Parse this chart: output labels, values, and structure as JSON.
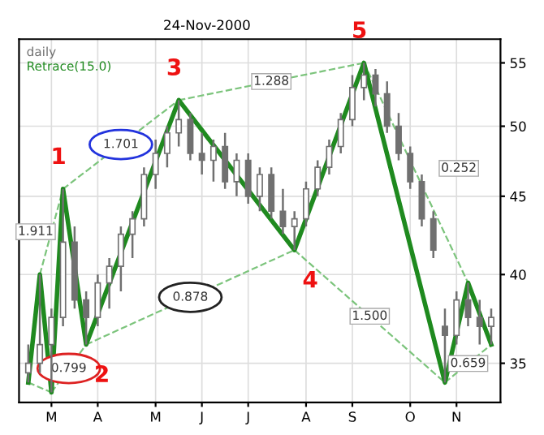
{
  "chart_data": {
    "type": "candlestick",
    "subtitle": "24-Nov-2000",
    "log": "y",
    "grid": true,
    "legend": "top left",
    "categories": [
      null,
      null,
      "M",
      null,
      null,
      null,
      "A",
      null,
      null,
      null,
      null,
      "M",
      null,
      null,
      null,
      "J",
      null,
      null,
      null,
      "J",
      null,
      null,
      null,
      null,
      "A",
      null,
      null,
      null,
      "S",
      null,
      null,
      null,
      null,
      "O",
      null,
      null,
      null,
      "N",
      null,
      null,
      null
    ],
    "ylim": [
      33,
      57
    ],
    "yticks": [
      35,
      40,
      45,
      50,
      55
    ],
    "series": [
      {
        "name": "daily",
        "color": "#707070",
        "ohlc": [
          [
            34.5,
            36,
            34,
            35
          ],
          [
            35,
            40,
            34.5,
            36
          ],
          [
            36,
            38,
            33.5,
            37.5
          ],
          [
            37.5,
            45.5,
            37,
            42
          ],
          [
            42,
            43,
            38,
            38.5
          ],
          [
            38.5,
            39,
            36,
            37.5
          ],
          [
            37.5,
            40,
            37,
            39.5
          ],
          [
            39.5,
            41,
            38,
            40.5
          ],
          [
            40.5,
            43,
            39,
            42.5
          ],
          [
            42.5,
            44,
            41,
            43.5
          ],
          [
            43.5,
            47,
            43,
            46.5
          ],
          [
            46.5,
            49,
            45.5,
            48
          ],
          [
            48,
            50,
            47,
            49.5
          ],
          [
            49.5,
            52,
            48.5,
            50.5
          ],
          [
            50.5,
            51,
            47.5,
            48
          ],
          [
            48,
            49.5,
            46.5,
            47.5
          ],
          [
            47.5,
            49,
            46,
            48.5
          ],
          [
            48.5,
            49.5,
            45.5,
            46
          ],
          [
            46,
            48,
            45,
            47.5
          ],
          [
            47.5,
            48,
            44.5,
            45
          ],
          [
            45,
            47,
            44,
            46.5
          ],
          [
            46.5,
            47,
            43.5,
            44
          ],
          [
            44,
            45.5,
            42.5,
            43
          ],
          [
            43,
            44,
            41.5,
            43.5
          ],
          [
            43.5,
            46,
            43,
            45.5
          ],
          [
            45.5,
            47.5,
            45,
            47
          ],
          [
            47,
            49,
            46.5,
            48.5
          ],
          [
            48.5,
            51,
            48,
            50.5
          ],
          [
            50.5,
            54,
            50,
            53
          ],
          [
            53,
            55,
            52,
            54
          ],
          [
            54,
            54.5,
            51.5,
            52.5
          ],
          [
            52.5,
            53.5,
            49.5,
            50
          ],
          [
            50,
            51,
            47.5,
            48
          ],
          [
            48,
            48.5,
            45.5,
            46
          ],
          [
            46,
            46.5,
            43,
            43.5
          ],
          [
            43.5,
            44,
            41,
            41.5
          ],
          [
            37,
            38,
            34,
            36.5
          ],
          [
            36.5,
            39,
            36,
            38.5
          ],
          [
            38.5,
            39.5,
            37,
            37.5
          ],
          [
            37.5,
            38.5,
            36,
            37
          ],
          [
            37,
            38,
            36,
            37.5
          ]
        ]
      },
      {
        "type": "line",
        "name": "Retrace(15.0)",
        "color": "#1f8a1f",
        "line_style": "solid",
        "values": [
          34,
          40,
          33.5,
          45.5,
          null,
          36,
          null,
          null,
          null,
          null,
          null,
          null,
          null,
          52,
          null,
          null,
          null,
          null,
          null,
          null,
          null,
          null,
          null,
          41.5,
          null,
          null,
          null,
          null,
          null,
          55,
          null,
          null,
          null,
          null,
          null,
          null,
          34,
          null,
          39.5,
          null,
          36
        ]
      },
      {
        "type": "line",
        "color": "#7cc47c",
        "line_style": "dashed",
        "values": [
          null,
          40,
          null,
          45.5,
          null,
          null,
          null,
          null,
          null,
          null,
          null,
          null,
          null,
          null,
          null,
          null,
          null,
          null,
          null,
          null,
          null,
          null,
          null,
          null,
          null,
          null,
          null,
          null,
          null,
          null,
          null,
          null,
          null,
          null,
          null,
          null,
          null,
          null,
          null,
          null,
          null
        ]
      },
      {
        "type": "line",
        "color": "#7cc47c",
        "line_style": "dashed",
        "values": [
          null,
          null,
          null,
          45.5,
          null,
          null,
          null,
          null,
          null,
          null,
          null,
          null,
          null,
          52,
          null,
          null,
          null,
          null,
          null,
          null,
          null,
          null,
          null,
          null,
          null,
          null,
          null,
          null,
          null,
          null,
          null,
          null,
          null,
          null,
          null,
          null,
          null,
          null,
          null,
          null,
          null
        ]
      },
      {
        "type": "line",
        "color": "#7cc47c",
        "line_style": "dashed",
        "values": [
          null,
          null,
          33.5,
          null,
          null,
          36,
          null,
          null,
          null,
          null,
          null,
          null,
          null,
          null,
          null,
          null,
          null,
          null,
          null,
          null,
          null,
          null,
          null,
          null,
          null,
          null,
          null,
          null,
          null,
          null,
          null,
          null,
          null,
          null,
          null,
          null,
          null,
          null,
          null,
          null,
          null
        ]
      },
      {
        "type": "line",
        "color": "#7cc47c",
        "line_style": "dashed",
        "values": [
          null,
          null,
          null,
          null,
          null,
          36,
          null,
          null,
          null,
          null,
          null,
          null,
          null,
          null,
          null,
          null,
          null,
          null,
          null,
          null,
          null,
          null,
          null,
          41.5,
          null,
          null,
          null,
          null,
          null,
          null,
          null,
          null,
          null,
          null,
          null,
          null,
          null,
          null,
          null,
          null,
          null
        ]
      },
      {
        "type": "line",
        "color": "#7cc47c",
        "line_style": "dashed",
        "values": [
          null,
          null,
          null,
          null,
          null,
          null,
          null,
          null,
          null,
          null,
          null,
          null,
          null,
          52,
          null,
          null,
          null,
          null,
          null,
          null,
          null,
          null,
          null,
          null,
          null,
          null,
          null,
          null,
          null,
          55,
          null,
          null,
          null,
          null,
          null,
          null,
          null,
          null,
          null,
          null,
          null
        ]
      },
      {
        "type": "line",
        "color": "#7cc47c",
        "line_style": "dashed",
        "values": [
          null,
          null,
          null,
          null,
          null,
          null,
          null,
          null,
          null,
          null,
          null,
          null,
          null,
          null,
          null,
          null,
          null,
          null,
          null,
          null,
          null,
          null,
          null,
          41.5,
          null,
          null,
          null,
          null,
          null,
          null,
          null,
          null,
          null,
          null,
          null,
          null,
          34,
          null,
          null,
          null,
          null
        ]
      },
      {
        "type": "line",
        "color": "#7cc47c",
        "line_style": "dashed",
        "values": [
          null,
          null,
          null,
          null,
          null,
          null,
          null,
          null,
          null,
          null,
          null,
          null,
          null,
          null,
          null,
          null,
          null,
          null,
          null,
          null,
          null,
          null,
          null,
          null,
          null,
          null,
          null,
          null,
          null,
          55,
          null,
          null,
          null,
          null,
          null,
          null,
          null,
          null,
          39.5,
          null,
          null
        ]
      },
      {
        "type": "line",
        "color": "#7cc47c",
        "line_style": "dashed",
        "values": [
          null,
          null,
          null,
          null,
          null,
          null,
          null,
          null,
          null,
          null,
          null,
          null,
          null,
          null,
          null,
          null,
          null,
          null,
          null,
          null,
          null,
          null,
          null,
          null,
          null,
          null,
          null,
          null,
          null,
          null,
          null,
          null,
          null,
          null,
          null,
          null,
          34,
          null,
          null,
          null,
          36
        ]
      },
      {
        "type": "line",
        "color": "#7cc47c",
        "line_style": "dashed",
        "values": [
          34,
          null,
          33.5,
          null,
          null,
          null,
          null,
          null,
          null,
          null,
          null,
          null,
          null,
          null,
          null,
          null,
          null,
          null,
          null,
          null,
          null,
          null,
          null,
          null,
          null,
          null,
          null,
          null,
          null,
          null,
          null,
          null,
          null,
          null,
          null,
          null,
          null,
          null,
          null,
          null,
          null
        ]
      }
    ],
    "annotations": [
      "1",
      "2",
      "3",
      "4",
      "5",
      "1.911",
      "1.701",
      "0.799",
      "0.878",
      "1.288",
      "1.500",
      "0.252",
      "0.659"
    ]
  }
}
